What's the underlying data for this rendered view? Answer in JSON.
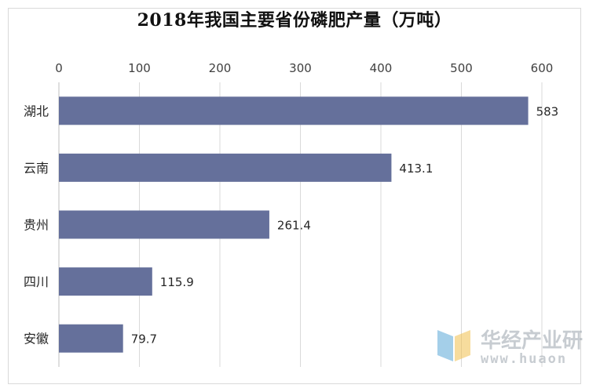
{
  "chart_data": {
    "type": "bar",
    "orientation": "horizontal",
    "title": "2018年我国主要省份磷肥产量（万吨）",
    "categories": [
      "湖北",
      "云南",
      "贵州",
      "四川",
      "安徽"
    ],
    "values": [
      583,
      413.1,
      261.4,
      115.9,
      79.7
    ],
    "value_labels": [
      "583",
      "413.1",
      "261.4",
      "115.9",
      "79.7"
    ],
    "xlim": [
      0,
      600
    ],
    "xticks": [
      "0",
      "100",
      "200",
      "300",
      "400",
      "500",
      "600"
    ],
    "x_axis_position": "top",
    "grid": true,
    "legend": "none",
    "bar_color": "#65709b"
  },
  "watermark": {
    "text_cn": "华经产业研",
    "text_en": "www.huaon"
  }
}
